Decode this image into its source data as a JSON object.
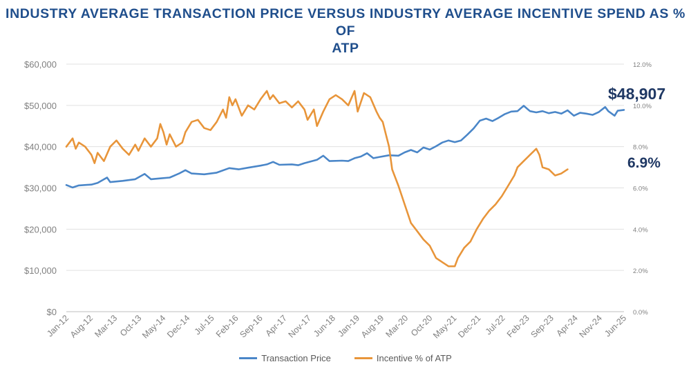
{
  "title_line1": "INDUSTRY AVERAGE TRANSACTION PRICE VERSUS INDUSTRY AVERAGE INCENTIVE SPEND AS % OF",
  "title_line2": "ATP",
  "colors": {
    "atp": "#4a86c8",
    "incentive": "#e8953a",
    "title": "#1f4e8c",
    "callout": "#1f3864"
  },
  "chart_data": {
    "type": "line",
    "title": "INDUSTRY AVERAGE TRANSACTION PRICE VERSUS INDUSTRY AVERAGE INCENTIVE SPEND AS % OF ATP",
    "x_tick_labels": [
      "Jan-12",
      "Aug-12",
      "Mar-13",
      "Oct-13",
      "May-14",
      "Dec-14",
      "Jul-15",
      "Feb-16",
      "Sep-16",
      "Apr-17",
      "Nov-17",
      "Jun-18",
      "Jan-19",
      "Aug-19",
      "Mar-20",
      "Oct-20",
      "May-21",
      "Dec-21",
      "Jul-22",
      "Feb-23",
      "Sep-23",
      "Apr-24",
      "Nov-24",
      "Jun-25"
    ],
    "x_range": [
      "Jan-12",
      "Jun-25"
    ],
    "y_left": {
      "min": 0,
      "max": 60000,
      "ticks": [
        "$0",
        "$10,000",
        "$20,000",
        "$30,000",
        "$40,000",
        "$50,000",
        "$60,000"
      ]
    },
    "y_right": {
      "min": 0,
      "max": 12,
      "ticks": [
        "0.0%",
        "2.0%",
        "4.0%",
        "6.0%",
        "8.0%",
        "10.0%",
        "12.0%"
      ]
    },
    "grid": true,
    "legend_position": "bottom-center",
    "series": [
      {
        "name": "Transaction Price",
        "axis": "left",
        "anchors": [
          [
            0,
            30700
          ],
          [
            2,
            30100
          ],
          [
            4,
            30600
          ],
          [
            8,
            30800
          ],
          [
            10,
            31200
          ],
          [
            13,
            32500
          ],
          [
            14,
            31400
          ],
          [
            18,
            31700
          ],
          [
            22,
            32100
          ],
          [
            25,
            33400
          ],
          [
            27,
            32100
          ],
          [
            30,
            32300
          ],
          [
            33,
            32500
          ],
          [
            36,
            33500
          ],
          [
            38,
            34300
          ],
          [
            40,
            33500
          ],
          [
            44,
            33300
          ],
          [
            48,
            33700
          ],
          [
            52,
            34800
          ],
          [
            55,
            34500
          ],
          [
            58,
            34900
          ],
          [
            62,
            35400
          ],
          [
            64,
            35700
          ],
          [
            66,
            36300
          ],
          [
            68,
            35600
          ],
          [
            72,
            35700
          ],
          [
            74,
            35500
          ],
          [
            76,
            36000
          ],
          [
            80,
            36800
          ],
          [
            82,
            37800
          ],
          [
            84,
            36500
          ],
          [
            88,
            36600
          ],
          [
            90,
            36500
          ],
          [
            92,
            37200
          ],
          [
            94,
            37600
          ],
          [
            96,
            38400
          ],
          [
            98,
            37200
          ],
          [
            100,
            37500
          ],
          [
            103,
            37900
          ],
          [
            106,
            37800
          ],
          [
            108,
            38600
          ],
          [
            110,
            39200
          ],
          [
            112,
            38600
          ],
          [
            114,
            39800
          ],
          [
            116,
            39300
          ],
          [
            118,
            40100
          ],
          [
            120,
            41000
          ],
          [
            122,
            41500
          ],
          [
            124,
            41100
          ],
          [
            126,
            41500
          ],
          [
            128,
            42900
          ],
          [
            130,
            44400
          ],
          [
            132,
            46300
          ],
          [
            134,
            46800
          ],
          [
            136,
            46200
          ],
          [
            138,
            47000
          ],
          [
            140,
            47900
          ],
          [
            142,
            48500
          ],
          [
            144,
            48600
          ],
          [
            146,
            49900
          ],
          [
            148,
            48600
          ],
          [
            150,
            48300
          ],
          [
            152,
            48600
          ],
          [
            154,
            48100
          ],
          [
            156,
            48400
          ],
          [
            158,
            48000
          ],
          [
            160,
            48800
          ],
          [
            162,
            47500
          ],
          [
            164,
            48200
          ],
          [
            166,
            48000
          ],
          [
            168,
            47700
          ],
          [
            170,
            48400
          ],
          [
            172,
            49600
          ],
          [
            173,
            48600
          ],
          [
            175,
            47500
          ],
          [
            176,
            48700
          ],
          [
            178,
            48907
          ]
        ],
        "end_label": "$48,907"
      },
      {
        "name": "Incentive % of ATP",
        "axis": "right",
        "anchors": [
          [
            0,
            8.0
          ],
          [
            2,
            8.4
          ],
          [
            3,
            7.9
          ],
          [
            4,
            8.2
          ],
          [
            6,
            8.0
          ],
          [
            8,
            7.6
          ],
          [
            9,
            7.2
          ],
          [
            10,
            7.7
          ],
          [
            12,
            7.3
          ],
          [
            14,
            8.0
          ],
          [
            16,
            8.3
          ],
          [
            18,
            7.9
          ],
          [
            20,
            7.6
          ],
          [
            22,
            8.1
          ],
          [
            23,
            7.8
          ],
          [
            25,
            8.4
          ],
          [
            27,
            8.0
          ],
          [
            29,
            8.4
          ],
          [
            30,
            9.1
          ],
          [
            31,
            8.7
          ],
          [
            32,
            8.1
          ],
          [
            33,
            8.6
          ],
          [
            35,
            8.0
          ],
          [
            37,
            8.2
          ],
          [
            38,
            8.7
          ],
          [
            40,
            9.2
          ],
          [
            42,
            9.3
          ],
          [
            44,
            8.9
          ],
          [
            46,
            8.8
          ],
          [
            48,
            9.2
          ],
          [
            50,
            9.8
          ],
          [
            51,
            9.4
          ],
          [
            52,
            10.4
          ],
          [
            53,
            10.0
          ],
          [
            54,
            10.3
          ],
          [
            56,
            9.5
          ],
          [
            58,
            10.0
          ],
          [
            60,
            9.8
          ],
          [
            62,
            10.3
          ],
          [
            64,
            10.7
          ],
          [
            65,
            10.3
          ],
          [
            66,
            10.5
          ],
          [
            68,
            10.1
          ],
          [
            70,
            10.2
          ],
          [
            72,
            9.9
          ],
          [
            74,
            10.2
          ],
          [
            76,
            9.8
          ],
          [
            77,
            9.3
          ],
          [
            79,
            9.8
          ],
          [
            80,
            9.0
          ],
          [
            82,
            9.7
          ],
          [
            84,
            10.3
          ],
          [
            86,
            10.5
          ],
          [
            88,
            10.3
          ],
          [
            90,
            10.0
          ],
          [
            92,
            10.7
          ],
          [
            93,
            9.7
          ],
          [
            95,
            10.6
          ],
          [
            97,
            10.4
          ],
          [
            99,
            9.7
          ],
          [
            100,
            9.4
          ],
          [
            101,
            9.2
          ],
          [
            102,
            8.6
          ],
          [
            103,
            8.0
          ],
          [
            104,
            6.9
          ],
          [
            106,
            6.1
          ],
          [
            108,
            5.2
          ],
          [
            110,
            4.3
          ],
          [
            112,
            3.9
          ],
          [
            114,
            3.5
          ],
          [
            116,
            3.2
          ],
          [
            118,
            2.6
          ],
          [
            120,
            2.4
          ],
          [
            122,
            2.2
          ],
          [
            124,
            2.2
          ],
          [
            125,
            2.6
          ],
          [
            127,
            3.1
          ],
          [
            129,
            3.4
          ],
          [
            131,
            4.0
          ],
          [
            133,
            4.5
          ],
          [
            135,
            4.9
          ],
          [
            137,
            5.2
          ],
          [
            139,
            5.6
          ],
          [
            141,
            6.1
          ],
          [
            143,
            6.6
          ],
          [
            144,
            7.0
          ],
          [
            146,
            7.3
          ],
          [
            148,
            7.6
          ],
          [
            150,
            7.9
          ],
          [
            151,
            7.6
          ],
          [
            152,
            7.0
          ],
          [
            154,
            6.9
          ],
          [
            156,
            6.6
          ],
          [
            158,
            6.7
          ],
          [
            160,
            6.9
          ]
        ],
        "end_label": "6.9%"
      }
    ]
  }
}
